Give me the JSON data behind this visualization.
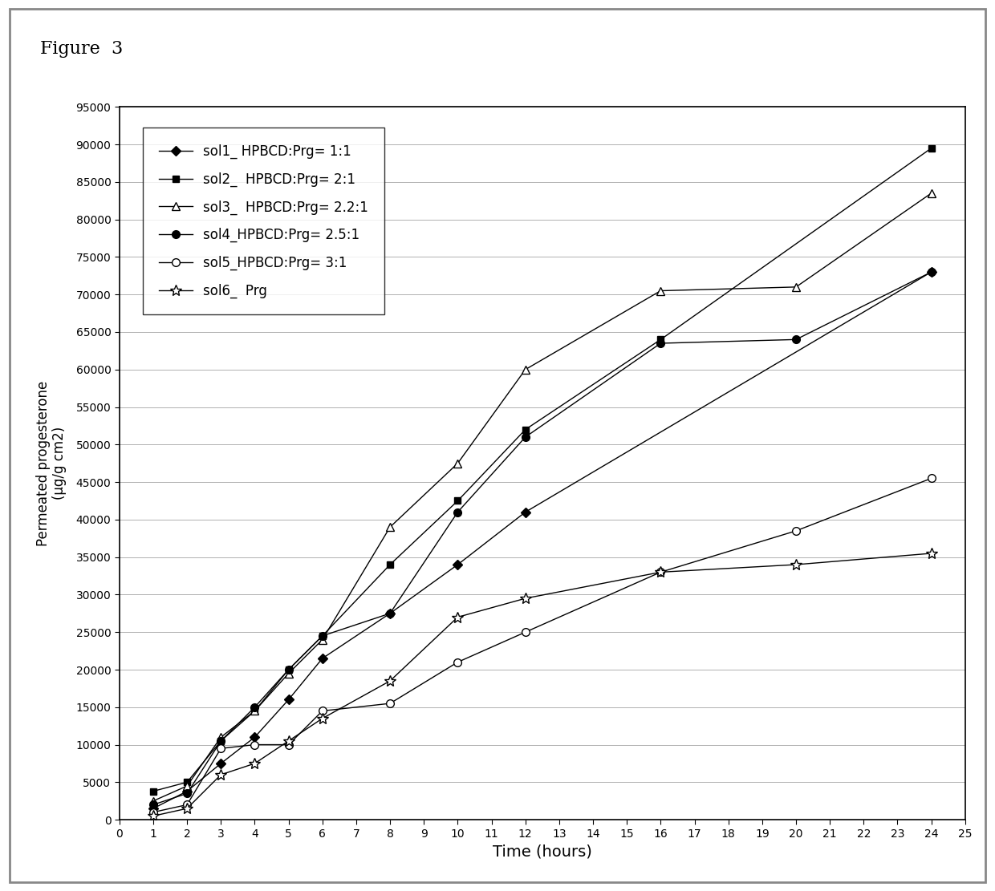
{
  "title": "Figure  3",
  "xlabel": "Time (hours)",
  "ylabel_top": "Permeated progesterone",
  "ylabel_bottom": "(µg/g cm2)",
  "xlim": [
    0,
    25
  ],
  "ylim": [
    0,
    95000
  ],
  "xticks": [
    0,
    1,
    2,
    3,
    4,
    5,
    6,
    7,
    8,
    9,
    10,
    11,
    12,
    13,
    14,
    15,
    16,
    17,
    18,
    19,
    20,
    21,
    22,
    23,
    24,
    25
  ],
  "yticks": [
    0,
    5000,
    10000,
    15000,
    20000,
    25000,
    30000,
    35000,
    40000,
    45000,
    50000,
    55000,
    60000,
    65000,
    70000,
    75000,
    80000,
    85000,
    90000,
    95000
  ],
  "series": [
    {
      "label": "sol1_ HPBCD:Prg= 1:1",
      "marker": "D",
      "markersize": 6,
      "markerfacecolor": "black",
      "color": "black",
      "x": [
        1,
        2,
        3,
        4,
        5,
        6,
        8,
        10,
        12,
        24
      ],
      "y": [
        1500,
        3800,
        7500,
        11000,
        16000,
        21500,
        27500,
        34000,
        41000,
        73000
      ]
    },
    {
      "label": "sol2_  HPBCD:Prg= 2:1",
      "marker": "s",
      "markersize": 6,
      "markerfacecolor": "black",
      "color": "black",
      "x": [
        1,
        2,
        3,
        4,
        5,
        6,
        8,
        10,
        12,
        16,
        24
      ],
      "y": [
        3800,
        5000,
        10500,
        14500,
        20000,
        24500,
        34000,
        42500,
        52000,
        64000,
        89500
      ]
    },
    {
      "label": "sol3_  HPBCD:Prg= 2.2:1",
      "marker": "^",
      "markersize": 7,
      "markerfacecolor": "white",
      "color": "black",
      "x": [
        1,
        2,
        3,
        4,
        5,
        6,
        8,
        10,
        12,
        16,
        20,
        24
      ],
      "y": [
        2500,
        4500,
        11000,
        14500,
        19500,
        24000,
        39000,
        47500,
        60000,
        70500,
        71000,
        83500
      ]
    },
    {
      "label": "sol4_HPBCD:Prg= 2.5:1",
      "marker": "o",
      "markersize": 7,
      "markerfacecolor": "black",
      "color": "black",
      "x": [
        1,
        2,
        3,
        4,
        5,
        6,
        8,
        10,
        12,
        16,
        20,
        24
      ],
      "y": [
        2000,
        3500,
        10500,
        15000,
        20000,
        24500,
        27500,
        41000,
        51000,
        63500,
        64000,
        73000
      ]
    },
    {
      "label": "sol5_HPBCD:Prg= 3:1",
      "marker": "o",
      "markersize": 7,
      "markerfacecolor": "white",
      "color": "black",
      "x": [
        1,
        2,
        3,
        4,
        5,
        6,
        8,
        10,
        12,
        16,
        20,
        24
      ],
      "y": [
        1000,
        2000,
        9500,
        10000,
        10000,
        14500,
        15500,
        21000,
        25000,
        33000,
        38500,
        45500
      ]
    },
    {
      "label": "sol6_  Prg",
      "marker": "*",
      "markersize": 10,
      "markerfacecolor": "white",
      "color": "black",
      "x": [
        1,
        2,
        3,
        4,
        5,
        6,
        8,
        10,
        12,
        16,
        20,
        24
      ],
      "y": [
        500,
        1500,
        6000,
        7500,
        10500,
        13500,
        18500,
        27000,
        29500,
        33000,
        34000,
        35500
      ]
    }
  ],
  "outer_bg": "#d8d8d8",
  "inner_bg": "#f5f5f5",
  "plot_bg": "#ffffff",
  "grid_color": "#b0b0b0",
  "legend_loc": "upper left",
  "legend_fontsize": 12,
  "title_fontsize": 16,
  "xlabel_fontsize": 14,
  "ylabel_fontsize": 12,
  "tick_fontsize": 10
}
